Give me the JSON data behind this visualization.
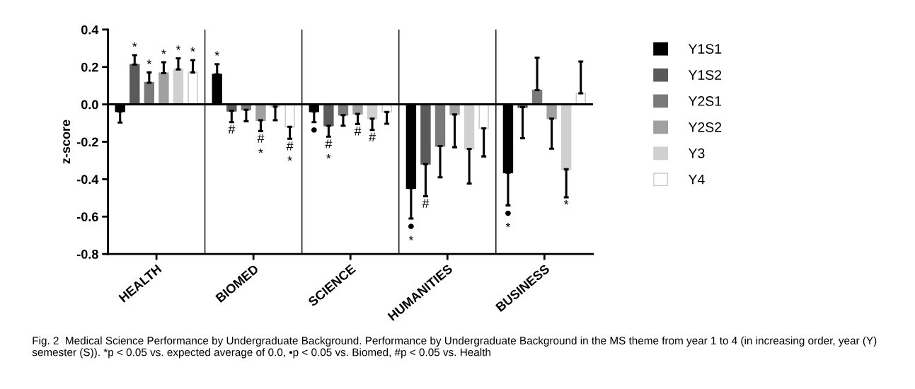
{
  "chart_data": {
    "type": "bar",
    "categories": [
      "HEALTH",
      "BIOMED",
      "SCIENCE",
      "HUMANITIES",
      "BUSINESS"
    ],
    "ylabel": "z-score",
    "ylim": [
      -0.8,
      0.4
    ],
    "yticks": [
      {
        "value": -0.8,
        "label": "-0.8"
      },
      {
        "value": -0.6,
        "label": "-0.6"
      },
      {
        "value": -0.4,
        "label": "-0.4"
      },
      {
        "value": -0.2,
        "label": "-0.2"
      },
      {
        "value": 0,
        "label": "0.0"
      },
      {
        "value": 0.2,
        "label": "0.2"
      },
      {
        "value": 0.4,
        "label": "0.4"
      }
    ],
    "grid": false,
    "legend": "right",
    "series": [
      {
        "name": "Y1S1",
        "color": "#000000",
        "values": [
          -0.038,
          0.161,
          -0.038,
          -0.448,
          -0.365
        ],
        "errors": [
          [
            -0.097,
            -0.038
          ],
          [
            0.161,
            0.215
          ],
          [
            -0.095,
            -0.038
          ],
          [
            -0.61,
            -0.448
          ],
          [
            -0.54,
            -0.365
          ]
        ],
        "value_labels": [
          null,
          "*",
          "●",
          "●\n*",
          "●\n*"
        ]
      },
      {
        "name": "Y1S2",
        "color": "#5a5a5a",
        "values": [
          0.213,
          -0.035,
          -0.114,
          -0.319,
          -0.015
        ],
        "errors": [
          [
            0.213,
            0.263
          ],
          [
            -0.095,
            -0.035
          ],
          [
            -0.173,
            -0.114
          ],
          [
            -0.491,
            -0.319
          ],
          [
            -0.181,
            -0.015
          ]
        ],
        "value_labels": [
          "*",
          "#",
          "#\n*",
          "#",
          null
        ]
      },
      {
        "name": "Y2S1",
        "color": "#7a7a7a",
        "values": [
          0.116,
          -0.029,
          -0.057,
          -0.223,
          0.076
        ],
        "errors": [
          [
            0.116,
            0.171
          ],
          [
            -0.09,
            -0.029
          ],
          [
            -0.114,
            -0.057
          ],
          [
            -0.39,
            -0.223
          ],
          [
            0.076,
            0.25
          ]
        ],
        "value_labels": [
          "*",
          null,
          null,
          null,
          null
        ]
      },
      {
        "name": "Y2S2",
        "color": "#a0a0a0",
        "values": [
          0.167,
          -0.085,
          -0.051,
          -0.054,
          -0.076
        ],
        "errors": [
          [
            0.167,
            0.225
          ],
          [
            -0.143,
            -0.085
          ],
          [
            -0.105,
            -0.051
          ],
          [
            -0.229,
            -0.054
          ],
          [
            -0.237,
            -0.076
          ]
        ],
        "value_labels": [
          "*",
          "#\n*",
          "#",
          null,
          null
        ]
      },
      {
        "name": "Y3",
        "color": "#d0d0d0",
        "values": [
          0.187,
          -0.012,
          -0.076,
          -0.238,
          -0.347
        ],
        "errors": [
          [
            0.187,
            0.246
          ],
          [
            -0.085,
            -0.012
          ],
          [
            -0.137,
            -0.076
          ],
          [
            -0.423,
            -0.238
          ],
          [
            -0.497,
            -0.347
          ]
        ],
        "value_labels": [
          "*",
          null,
          "#",
          null,
          "*"
        ]
      },
      {
        "name": "Y4",
        "color": "#ffffff",
        "values": [
          0.171,
          -0.12,
          -0.04,
          -0.128,
          0.059
        ],
        "errors": [
          [
            0.171,
            0.237
          ],
          [
            -0.184,
            -0.12
          ],
          [
            -0.104,
            -0.04
          ],
          [
            -0.278,
            -0.128
          ],
          [
            0.059,
            0.229
          ]
        ],
        "value_labels": [
          "*",
          "#\n*",
          null,
          null,
          null
        ]
      }
    ],
    "ref_lines": [
      {
        "axis": "y",
        "value": 0,
        "color": "#000000"
      }
    ],
    "annotations": [
      "Fig. 2  Medical Science Performance by Undergraduate Background. Performance by Undergraduate Background in the MS theme from year 1 to 4 (in increasing order, year (Y) semester (S)). *p < 0.05 vs. expected average of 0.0, •p < 0.05 vs. Biomed, #p < 0.05 vs. Health"
    ]
  }
}
